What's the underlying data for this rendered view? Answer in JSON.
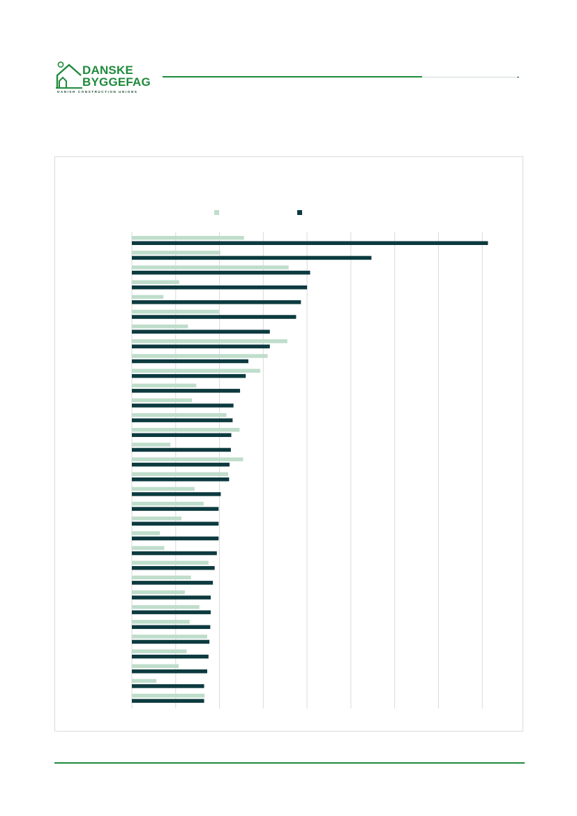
{
  "logo": {
    "line1": "DANSKE",
    "line2": "BYGGEFAG",
    "tagline": "DANISH CONSTRUCTION UNIONS"
  },
  "colors": {
    "brand": "#1f8a3c",
    "series_light": "#bfddcb",
    "series_dark": "#0c3a3f",
    "grid": "#d9d9d9"
  },
  "chart_data": {
    "type": "bar",
    "orientation": "horizontal",
    "title": "",
    "xlabel": "",
    "ylabel": "",
    "xlim": [
      0,
      90
    ],
    "grid": true,
    "legend_position": "top",
    "categories": [
      "",
      "",
      "",
      "",
      "",
      "",
      "",
      "",
      "",
      "",
      "",
      "",
      "",
      "",
      "",
      "",
      "",
      "",
      "",
      "",
      "",
      "",
      "",
      "",
      "",
      "",
      "",
      "",
      "",
      "",
      "",
      ""
    ],
    "series": [
      {
        "color": "#bfddcb",
        "values": [
          25.6,
          20.2,
          35.8,
          10.8,
          7.2,
          19.9,
          12.8,
          35.5,
          31.0,
          29.3,
          14.7,
          13.7,
          21.6,
          24.6,
          8.8,
          25.4,
          22.0,
          14.3,
          16.4,
          11.3,
          6.4,
          7.4,
          17.5,
          13.5,
          12.1,
          15.4,
          13.2,
          17.2,
          12.5,
          10.7,
          5.6,
          16.6
        ]
      },
      {
        "color": "#0c3a3f",
        "values": [
          81.3,
          54.7,
          40.7,
          40.0,
          38.6,
          37.5,
          31.5,
          31.5,
          26.6,
          26.0,
          24.7,
          23.2,
          23.0,
          22.7,
          22.6,
          22.3,
          22.2,
          20.3,
          19.8,
          19.8,
          19.8,
          19.4,
          18.9,
          18.5,
          18.0,
          18.0,
          17.9,
          17.7,
          17.5,
          17.2,
          16.5,
          16.5
        ]
      }
    ]
  }
}
